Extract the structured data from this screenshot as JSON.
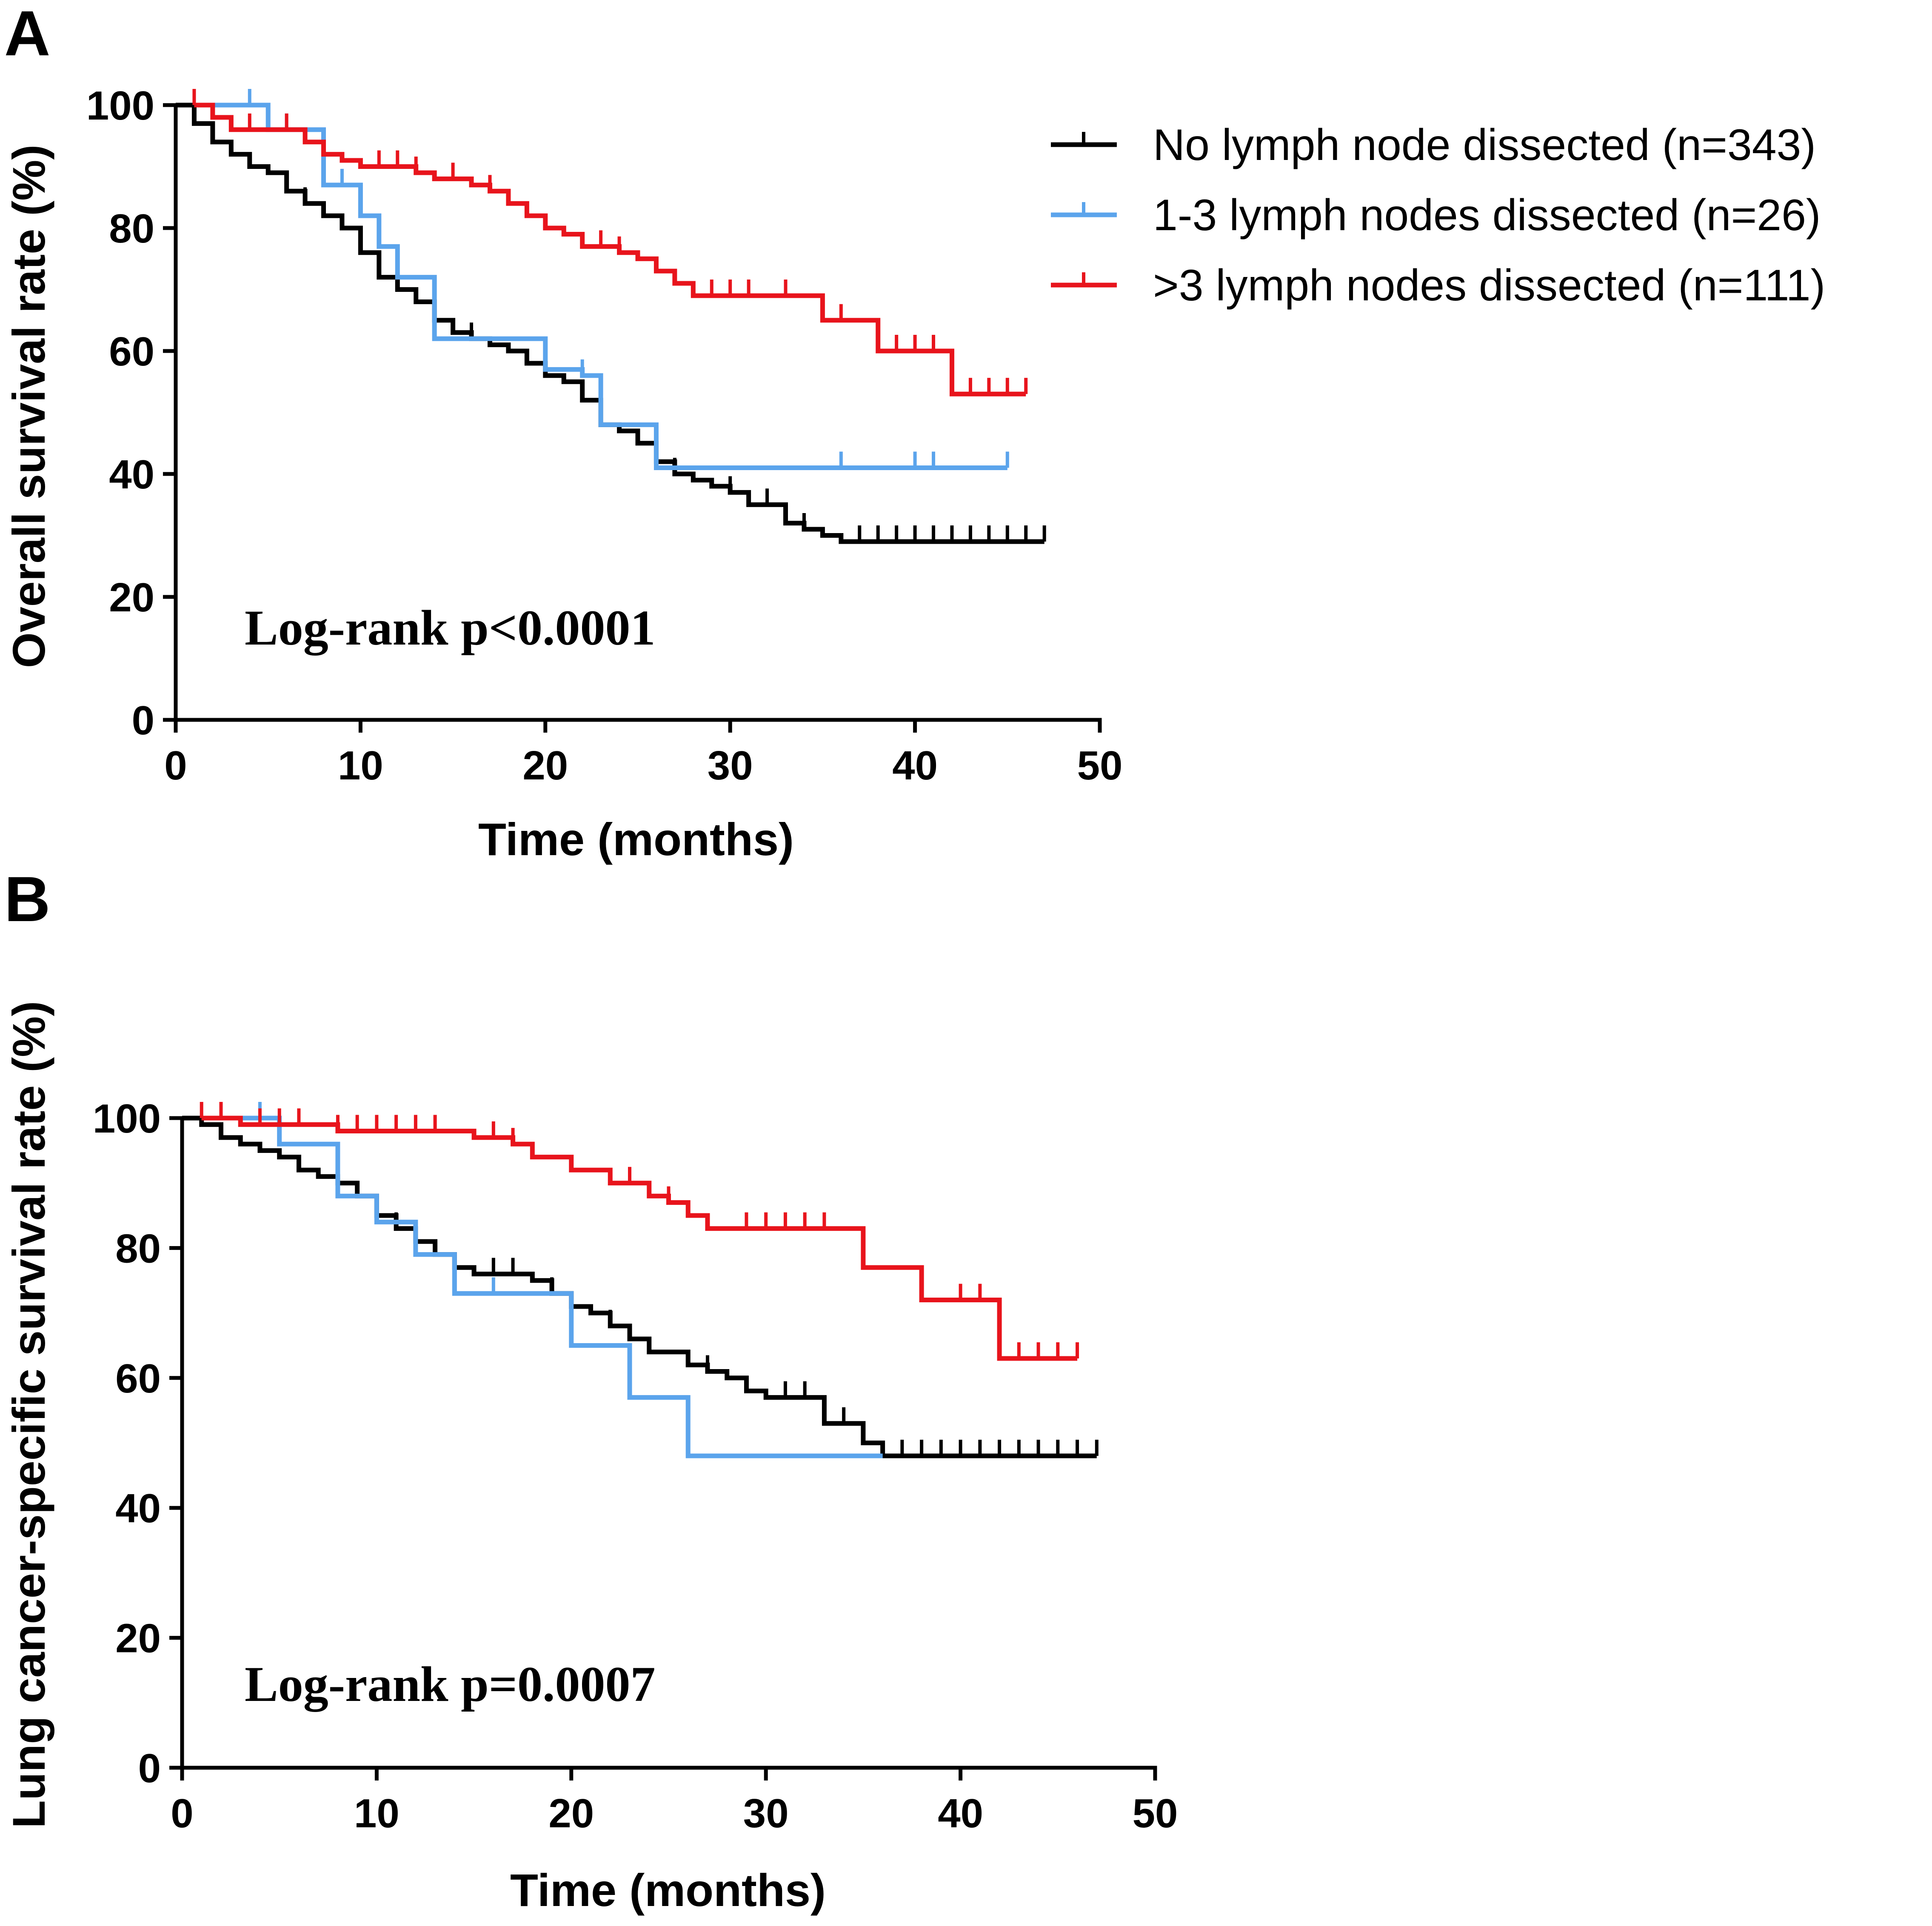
{
  "legend": [
    {
      "label": "No lymph node dissected (n=343)",
      "color": "#000000"
    },
    {
      "label": "1-3 lymph nodes dissected (n=26)",
      "color": "#5ba4ec"
    },
    {
      "label": ">3 lymph nodes dissected (n=111)",
      "color": "#e8141c"
    }
  ],
  "chart_data": [
    {
      "type": "line",
      "panel": "A",
      "title": "",
      "xlabel": "Time (months)",
      "ylabel": "Overall survival rate (%)",
      "xlim": [
        0,
        50
      ],
      "ylim": [
        0,
        100
      ],
      "xticks": [
        0,
        10,
        20,
        30,
        40,
        50
      ],
      "yticks": [
        0,
        20,
        40,
        60,
        80,
        100
      ],
      "annotation": "Log-rank p<0.0001",
      "series": [
        {
          "name": "No lymph node dissected (n=343)",
          "color": "#000000",
          "steps": [
            [
              0,
              100
            ],
            [
              1,
              97
            ],
            [
              2,
              94
            ],
            [
              3,
              92
            ],
            [
              4,
              90
            ],
            [
              5,
              89
            ],
            [
              6,
              86
            ],
            [
              7,
              84
            ],
            [
              8,
              82
            ],
            [
              9,
              80
            ],
            [
              10,
              76
            ],
            [
              11,
              72
            ],
            [
              12,
              70
            ],
            [
              13,
              68
            ],
            [
              14,
              65
            ],
            [
              15,
              63
            ],
            [
              16,
              62
            ],
            [
              17,
              61
            ],
            [
              18,
              60
            ],
            [
              19,
              58
            ],
            [
              20,
              56
            ],
            [
              21,
              55
            ],
            [
              22,
              52
            ],
            [
              23,
              48
            ],
            [
              24,
              47
            ],
            [
              25,
              45
            ],
            [
              26,
              42
            ],
            [
              27,
              40
            ],
            [
              28,
              39
            ],
            [
              29,
              38
            ],
            [
              30,
              37
            ],
            [
              31,
              35
            ],
            [
              33,
              32
            ],
            [
              34,
              31
            ],
            [
              35,
              30
            ],
            [
              36,
              29
            ],
            [
              47,
              29
            ]
          ],
          "censor": [
            7,
            14,
            16,
            22,
            27,
            30,
            32,
            34,
            37,
            38,
            39,
            40,
            41,
            42,
            43,
            44,
            45,
            46,
            47
          ]
        },
        {
          "name": "1-3 lymph nodes dissected (n=26)",
          "color": "#5ba4ec",
          "steps": [
            [
              1,
              100
            ],
            [
              5,
              96
            ],
            [
              8,
              87
            ],
            [
              10,
              82
            ],
            [
              11,
              77
            ],
            [
              12,
              72
            ],
            [
              14,
              62
            ],
            [
              20,
              57
            ],
            [
              22,
              56
            ],
            [
              23,
              48
            ],
            [
              26,
              41
            ],
            [
              45,
              41
            ]
          ],
          "censor": [
            4,
            6,
            9,
            22,
            36,
            40,
            41,
            45
          ]
        },
        {
          "name": ">3 lymph nodes dissected (n=111)",
          "color": "#e8141c",
          "steps": [
            [
              1,
              100
            ],
            [
              2,
              98
            ],
            [
              3,
              96
            ],
            [
              7,
              94
            ],
            [
              8,
              92
            ],
            [
              9,
              91
            ],
            [
              10,
              90
            ],
            [
              13,
              89
            ],
            [
              14,
              88
            ],
            [
              16,
              87
            ],
            [
              17,
              86
            ],
            [
              18,
              84
            ],
            [
              19,
              82
            ],
            [
              20,
              80
            ],
            [
              21,
              79
            ],
            [
              22,
              77
            ],
            [
              24,
              76
            ],
            [
              25,
              75
            ],
            [
              26,
              73
            ],
            [
              27,
              71
            ],
            [
              28,
              69
            ],
            [
              35,
              65
            ],
            [
              38,
              60
            ],
            [
              42,
              53
            ],
            [
              46,
              53
            ]
          ],
          "censor": [
            1,
            4,
            6,
            11,
            12,
            13,
            15,
            17,
            23,
            24,
            29,
            30,
            31,
            33,
            36,
            39,
            40,
            41,
            43,
            44,
            45,
            46
          ]
        }
      ]
    },
    {
      "type": "line",
      "panel": "B",
      "title": "",
      "xlabel": "Time (months)",
      "ylabel": "Lung cancer-specific survival rate (%)",
      "xlim": [
        0,
        50
      ],
      "ylim": [
        0,
        100
      ],
      "xticks": [
        0,
        10,
        20,
        30,
        40,
        50
      ],
      "yticks": [
        0,
        20,
        40,
        60,
        80,
        100
      ],
      "annotation": "Log-rank p=0.0007",
      "series": [
        {
          "name": "No lymph node dissected (n=343)",
          "color": "#000000",
          "steps": [
            [
              0,
              100
            ],
            [
              1,
              99
            ],
            [
              2,
              97
            ],
            [
              3,
              96
            ],
            [
              4,
              95
            ],
            [
              5,
              94
            ],
            [
              6,
              92
            ],
            [
              7,
              91
            ],
            [
              8,
              90
            ],
            [
              9,
              88
            ],
            [
              10,
              85
            ],
            [
              11,
              83
            ],
            [
              12,
              81
            ],
            [
              13,
              79
            ],
            [
              14,
              77
            ],
            [
              15,
              76
            ],
            [
              18,
              75
            ],
            [
              19,
              73
            ],
            [
              20,
              71
            ],
            [
              21,
              70
            ],
            [
              22,
              68
            ],
            [
              23,
              66
            ],
            [
              24,
              64
            ],
            [
              26,
              62
            ],
            [
              27,
              61
            ],
            [
              28,
              60
            ],
            [
              29,
              58
            ],
            [
              30,
              57
            ],
            [
              33,
              53
            ],
            [
              35,
              50
            ],
            [
              36,
              48
            ],
            [
              47,
              48
            ]
          ],
          "censor": [
            11,
            16,
            17,
            19,
            22,
            27,
            31,
            32,
            33,
            34,
            37,
            38,
            39,
            40,
            41,
            42,
            43,
            44,
            45,
            46,
            47
          ]
        },
        {
          "name": "1-3 lymph nodes dissected (n=26)",
          "color": "#5ba4ec",
          "steps": [
            [
              1,
              100
            ],
            [
              5,
              96
            ],
            [
              8,
              88
            ],
            [
              10,
              84
            ],
            [
              12,
              79
            ],
            [
              14,
              73
            ],
            [
              20,
              65
            ],
            [
              23,
              57
            ],
            [
              26,
              48
            ],
            [
              36,
              48
            ]
          ],
          "censor": [
            4,
            16
          ]
        },
        {
          "name": ">3 lymph nodes dissected (n=111)",
          "color": "#e8141c",
          "steps": [
            [
              1,
              100
            ],
            [
              3,
              99
            ],
            [
              8,
              98
            ],
            [
              15,
              97
            ],
            [
              17,
              96
            ],
            [
              18,
              94
            ],
            [
              20,
              92
            ],
            [
              22,
              90
            ],
            [
              24,
              88
            ],
            [
              25,
              87
            ],
            [
              26,
              85
            ],
            [
              27,
              83
            ],
            [
              35,
              77
            ],
            [
              38,
              72
            ],
            [
              42,
              63
            ],
            [
              46,
              63
            ]
          ],
          "censor": [
            1,
            2,
            4,
            5,
            6,
            8,
            9,
            10,
            11,
            12,
            13,
            16,
            17,
            23,
            25,
            29,
            30,
            31,
            32,
            33,
            35,
            38,
            40,
            41,
            43,
            44,
            45,
            46
          ]
        }
      ]
    }
  ]
}
